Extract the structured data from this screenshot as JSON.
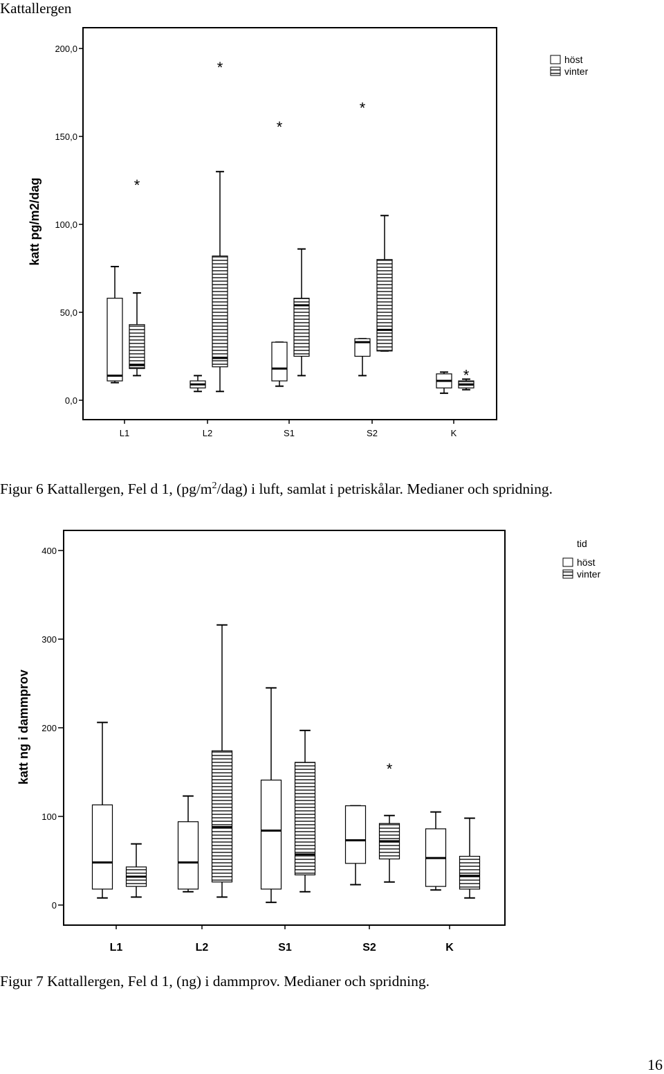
{
  "page": {
    "heading": "Kattallergen",
    "caption1_pre": "Figur 6 Kattallergen, Fel d 1, (pg/m",
    "caption1_sup": "2",
    "caption1_post": "/dag) i luft, samlat i petriskålar. Medianer och spridning.",
    "caption2": "Figur 7 Kattallergen, Fel d 1, (ng) i dammprov. Medianer och spridning.",
    "page_number": "16"
  },
  "colors": {
    "frame": "#000000",
    "box_fill": "#ffffff",
    "stripe": "#555555",
    "whisker": "#000000"
  },
  "chart_data": [
    {
      "type": "boxplot",
      "ylabel": "katt pg/m2/dag",
      "ylim": [
        0,
        200
      ],
      "yticks": [
        0,
        50,
        100,
        150,
        200
      ],
      "ytick_labels": [
        "0,0",
        "50,0",
        "100,0",
        "150,0",
        "200,0"
      ],
      "categories": [
        "L1",
        "L2",
        "S1",
        "S2",
        "K"
      ],
      "legend": {
        "title": "",
        "entries": [
          "höst",
          "vinter"
        ],
        "placement": "top-right"
      },
      "grid": false,
      "series": [
        {
          "name": "höst",
          "pattern": "plain",
          "boxes": [
            {
              "min": 10,
              "q1": 11,
              "median": 14,
              "q3": 58,
              "max": 76,
              "outliers": []
            },
            {
              "min": 5,
              "q1": 7,
              "median": 9,
              "q3": 11,
              "max": 14,
              "outliers": []
            },
            {
              "min": 8,
              "q1": 11,
              "median": 18,
              "q3": 33,
              "max": 33,
              "outliers": [
                157
              ]
            },
            {
              "min": 14,
              "q1": 25,
              "median": 33,
              "q3": 35,
              "max": 35,
              "outliers": [
                168
              ]
            },
            {
              "min": 4,
              "q1": 7,
              "median": 11,
              "q3": 15,
              "max": 16,
              "outliers": []
            }
          ]
        },
        {
          "name": "vinter",
          "pattern": "striped",
          "boxes": [
            {
              "min": 14,
              "q1": 18,
              "median": 20,
              "q3": 43,
              "max": 61,
              "outliers": [
                124
              ]
            },
            {
              "min": 5,
              "q1": 19,
              "median": 24,
              "q3": 82,
              "max": 130,
              "outliers": [
                191
              ]
            },
            {
              "min": 14,
              "q1": 25,
              "median": 54,
              "q3": 58,
              "max": 86,
              "outliers": []
            },
            {
              "min": 28,
              "q1": 28,
              "median": 40,
              "q3": 80,
              "max": 105,
              "outliers": []
            },
            {
              "min": 6,
              "q1": 7,
              "median": 9,
              "q3": 11,
              "max": 12,
              "outliers": [
                16
              ]
            }
          ]
        }
      ]
    },
    {
      "type": "boxplot",
      "ylabel": "katt ng i dammprov",
      "ylim": [
        0,
        400
      ],
      "yticks": [
        0,
        100,
        200,
        300,
        400
      ],
      "ytick_labels": [
        "0",
        "100",
        "200",
        "300",
        "400"
      ],
      "categories": [
        "L1",
        "L2",
        "S1",
        "S2",
        "K"
      ],
      "legend": {
        "title": "tid",
        "entries": [
          "höst",
          "vinter"
        ],
        "placement": "top-right"
      },
      "grid": false,
      "series": [
        {
          "name": "höst",
          "pattern": "plain",
          "boxes": [
            {
              "min": 8,
              "q1": 18,
              "median": 48,
              "q3": 113,
              "max": 206,
              "outliers": []
            },
            {
              "min": 15,
              "q1": 18,
              "median": 48,
              "q3": 94,
              "max": 123,
              "outliers": []
            },
            {
              "min": 3,
              "q1": 18,
              "median": 84,
              "q3": 141,
              "max": 245,
              "outliers": []
            },
            {
              "min": 23,
              "q1": 47,
              "median": 73,
              "q3": 112,
              "max": 112,
              "outliers": []
            },
            {
              "min": 17,
              "q1": 21,
              "median": 53,
              "q3": 86,
              "max": 105,
              "outliers": []
            }
          ]
        },
        {
          "name": "vinter",
          "pattern": "striped",
          "boxes": [
            {
              "min": 9,
              "q1": 21,
              "median": 32,
              "q3": 43,
              "max": 69,
              "outliers": []
            },
            {
              "min": 9,
              "q1": 26,
              "median": 88,
              "q3": 174,
              "max": 316,
              "outliers": []
            },
            {
              "min": 15,
              "q1": 34,
              "median": 57,
              "q3": 161,
              "max": 197,
              "outliers": []
            },
            {
              "min": 26,
              "q1": 52,
              "median": 72,
              "q3": 92,
              "max": 101,
              "outliers": [
                157
              ]
            },
            {
              "min": 8,
              "q1": 18,
              "median": 33,
              "q3": 55,
              "max": 98,
              "outliers": []
            }
          ]
        }
      ]
    }
  ]
}
